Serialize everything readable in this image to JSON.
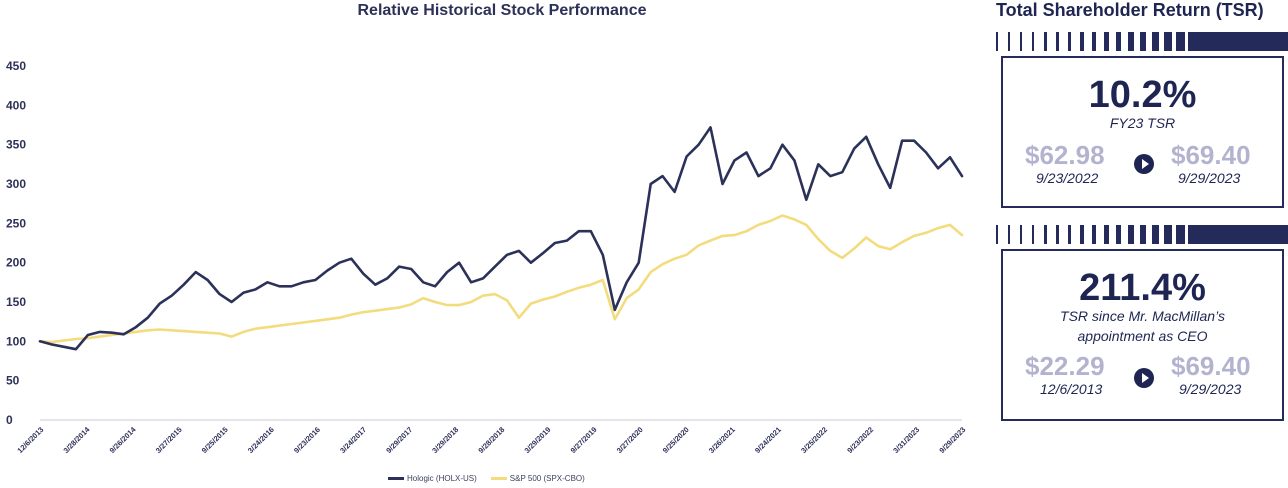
{
  "chart_data": {
    "type": "line",
    "title": "Relative Historical Stock Performance",
    "ylim": [
      0,
      450
    ],
    "yticks": [
      0,
      50,
      100,
      150,
      200,
      250,
      300,
      350,
      400,
      450
    ],
    "xtick_labels": [
      "12/6/2013",
      "3/28/2014",
      "9/26/2014",
      "3/27/2015",
      "9/25/2015",
      "3/24/2016",
      "9/23/2016",
      "3/24/2017",
      "9/29/2017",
      "3/29/2018",
      "9/28/2018",
      "3/29/2019",
      "9/27/2019",
      "3/27/2020",
      "9/25/2020",
      "3/26/2021",
      "9/24/2021",
      "3/25/2022",
      "9/23/2022",
      "3/31/2023",
      "9/29/2023"
    ],
    "series": [
      {
        "name": "Hologic (HOLX-US)",
        "color": "#2b3158",
        "values": [
          100,
          96,
          93,
          90,
          108,
          112,
          111,
          109,
          118,
          130,
          148,
          158,
          172,
          188,
          178,
          160,
          150,
          162,
          166,
          175,
          170,
          170,
          175,
          178,
          190,
          200,
          205,
          186,
          172,
          180,
          195,
          192,
          175,
          170,
          188,
          200,
          175,
          180,
          195,
          210,
          215,
          200,
          212,
          225,
          228,
          240,
          240,
          210,
          140,
          175,
          200,
          300,
          310,
          290,
          335,
          350,
          372,
          300,
          330,
          340,
          310,
          320,
          350,
          330,
          280,
          325,
          310,
          315,
          345,
          360,
          325,
          295,
          355,
          355,
          340,
          320,
          334,
          310
        ],
        "stroke_width": 2.6
      },
      {
        "name": "S&P 500 (SPX-CBO)",
        "color": "#f3dc7e",
        "values": [
          100,
          99,
          101,
          103,
          104,
          106,
          108,
          110,
          112,
          114,
          115,
          114,
          113,
          112,
          111,
          110,
          106,
          112,
          116,
          118,
          120,
          122,
          124,
          126,
          128,
          130,
          134,
          137,
          139,
          141,
          143,
          147,
          155,
          150,
          146,
          146,
          150,
          158,
          160,
          152,
          130,
          148,
          153,
          157,
          163,
          168,
          172,
          178,
          128,
          155,
          166,
          188,
          198,
          205,
          210,
          222,
          228,
          234,
          235,
          240,
          248,
          253,
          260,
          255,
          248,
          230,
          215,
          206,
          218,
          232,
          221,
          217,
          226,
          234,
          238,
          244,
          248,
          235
        ],
        "stroke_width": 2.6
      }
    ],
    "legend_position": "bottom"
  },
  "tsr": {
    "title": "Total Shareholder Return (TSR)",
    "cards": [
      {
        "value": "10.2%",
        "label_lines": [
          "FY23 TSR"
        ],
        "start_price": "$62.98",
        "start_date": "9/23/2022",
        "end_price": "$69.40",
        "end_date": "9/29/2023"
      },
      {
        "value": "211.4%",
        "label_lines": [
          "TSR since Mr. MacMillan’s",
          "appointment as CEO"
        ],
        "start_price": "$22.29",
        "start_date": "12/6/2013",
        "end_price": "$69.40",
        "end_date": "9/29/2023"
      }
    ]
  },
  "colors": {
    "navy": "#1f2552",
    "gold": "#f3dc7e",
    "muted_price": "#b4b3cf"
  }
}
